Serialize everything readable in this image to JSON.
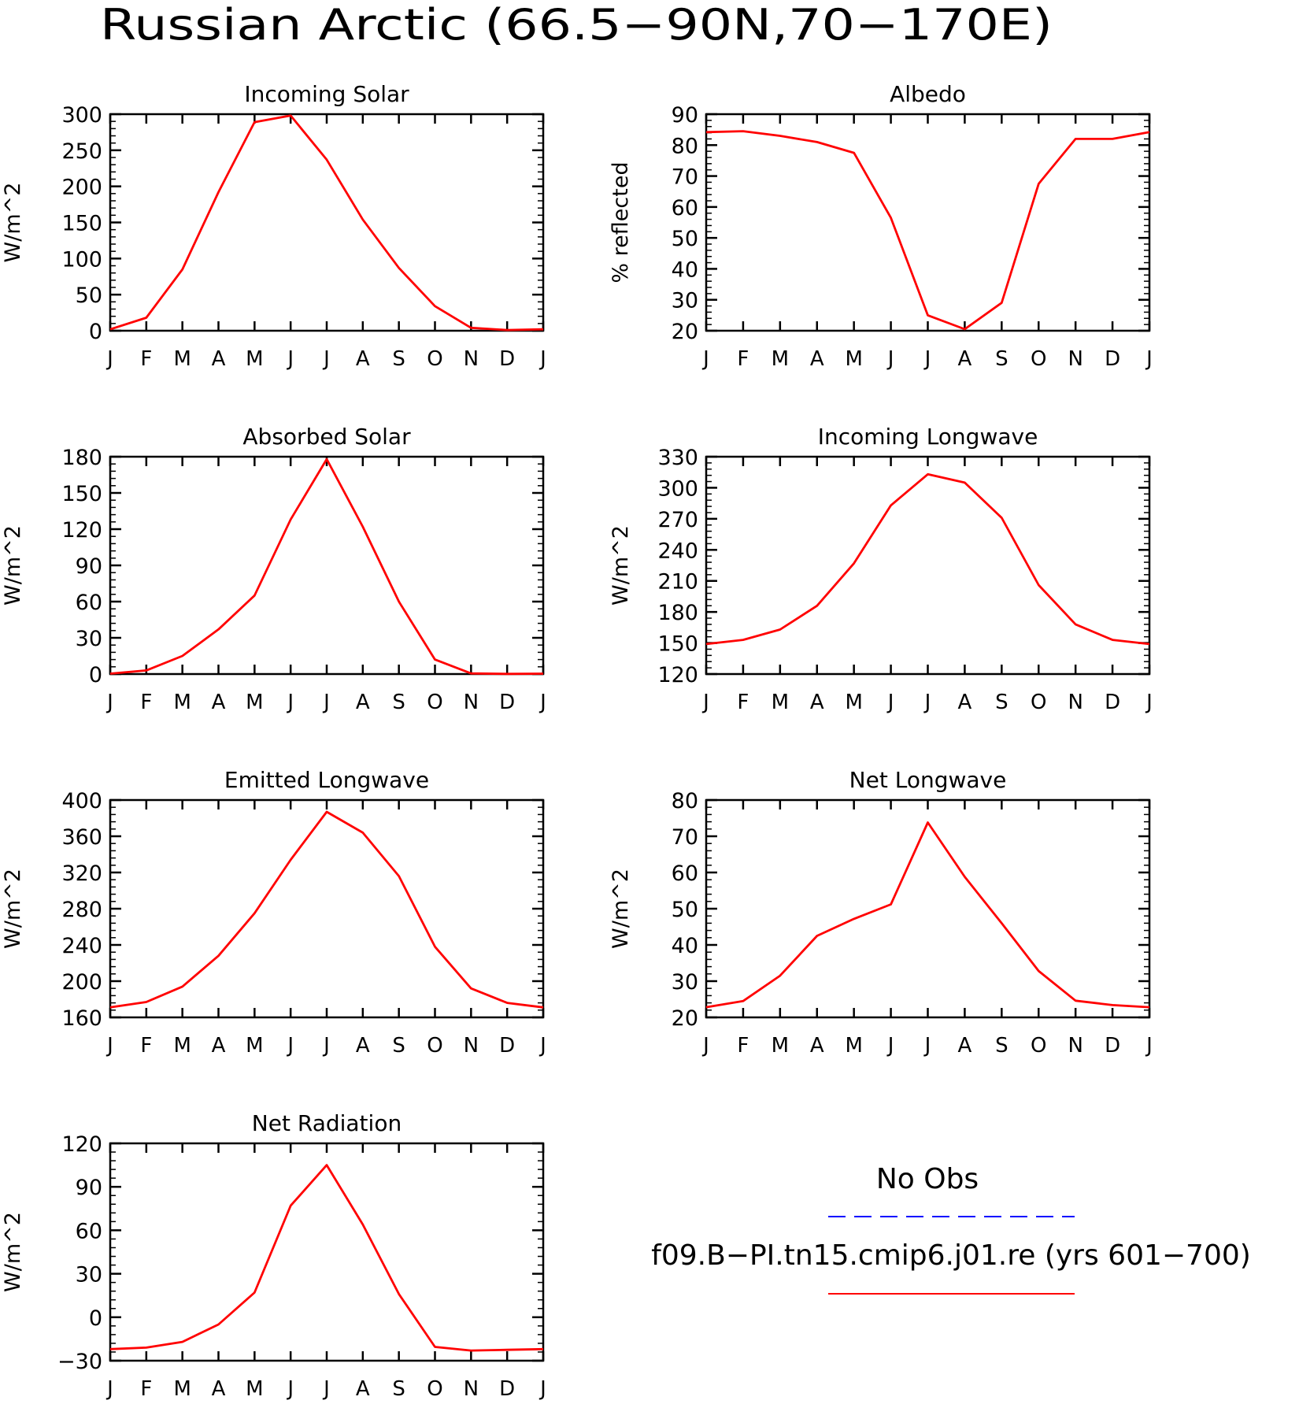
{
  "page_title": "Russian Arctic (66.5−90N,70−170E)",
  "colors": {
    "model_line": "#ff0000",
    "obs_line": "#0000ff",
    "axes": "#000000"
  },
  "legend": {
    "obs_label": "No Obs",
    "model_label": "f09.B−PI.tn15.cmip6.j01.re (yrs 601−700)"
  },
  "chart_data": [
    {
      "type": "line",
      "title": "Incoming Solar",
      "ylabel": "W/m^2",
      "ylim": [
        0,
        300
      ],
      "yticks": [
        0,
        50,
        100,
        150,
        200,
        250,
        300
      ],
      "ytick_labels": [
        "0",
        "50",
        "100",
        "150",
        "200",
        "250",
        "300"
      ],
      "categories": [
        "J",
        "F",
        "M",
        "A",
        "M",
        "J",
        "J",
        "A",
        "S",
        "O",
        "N",
        "D",
        "J"
      ],
      "series": [
        {
          "values": [
            2,
            18,
            85,
            192,
            289,
            298,
            237,
            154,
            87,
            34,
            4,
            1,
            2
          ]
        }
      ]
    },
    {
      "type": "line",
      "title": "Albedo",
      "ylabel": "% reflected",
      "ylim": [
        20,
        90
      ],
      "yticks": [
        20,
        30,
        40,
        50,
        60,
        70,
        80,
        90
      ],
      "ytick_labels": [
        "20",
        "30",
        "40",
        "50",
        "60",
        "70",
        "80",
        "90"
      ],
      "categories": [
        "J",
        "F",
        "M",
        "A",
        "M",
        "J",
        "J",
        "A",
        "S",
        "O",
        "N",
        "D",
        "J"
      ],
      "series": [
        {
          "values": [
            84.2,
            84.5,
            83,
            81,
            77.5,
            56.5,
            25,
            20.5,
            29,
            67.5,
            82,
            82,
            84.2
          ]
        }
      ]
    },
    {
      "type": "line",
      "title": "Absorbed Solar",
      "ylabel": "W/m^2",
      "ylim": [
        0,
        180
      ],
      "yticks": [
        0,
        30,
        60,
        90,
        120,
        150,
        180
      ],
      "ytick_labels": [
        "0",
        "30",
        "60",
        "90",
        "120",
        "150",
        "180"
      ],
      "categories": [
        "J",
        "F",
        "M",
        "A",
        "M",
        "J",
        "J",
        "A",
        "S",
        "O",
        "N",
        "D",
        "J"
      ],
      "series": [
        {
          "values": [
            0.3,
            3,
            15,
            37,
            65,
            128,
            178,
            122,
            60,
            12,
            0.5,
            0.1,
            0.3
          ]
        }
      ]
    },
    {
      "type": "line",
      "title": "Incoming Longwave",
      "ylabel": "W/m^2",
      "ylim": [
        120,
        330
      ],
      "yticks": [
        120,
        150,
        180,
        210,
        240,
        270,
        300,
        330
      ],
      "ytick_labels": [
        "120",
        "150",
        "180",
        "210",
        "240",
        "270",
        "300",
        "330"
      ],
      "categories": [
        "J",
        "F",
        "M",
        "A",
        "M",
        "J",
        "J",
        "A",
        "S",
        "O",
        "N",
        "D",
        "J"
      ],
      "series": [
        {
          "values": [
            149,
            153,
            163,
            186,
            227,
            283,
            313,
            305,
            271,
            206,
            168,
            153,
            149
          ]
        }
      ]
    },
    {
      "type": "line",
      "title": "Emitted Longwave",
      "ylabel": "W/m^2",
      "ylim": [
        160,
        400
      ],
      "yticks": [
        160,
        200,
        240,
        280,
        320,
        360,
        400
      ],
      "ytick_labels": [
        "160",
        "200",
        "240",
        "280",
        "320",
        "360",
        "400"
      ],
      "categories": [
        "J",
        "F",
        "M",
        "A",
        "M",
        "J",
        "J",
        "A",
        "S",
        "O",
        "N",
        "D",
        "J"
      ],
      "series": [
        {
          "values": [
            171,
            177,
            194,
            228,
            275,
            334,
            387,
            364,
            316,
            238,
            192,
            176,
            171
          ]
        }
      ]
    },
    {
      "type": "line",
      "title": "Net Longwave",
      "ylabel": "W/m^2",
      "ylim": [
        20,
        80
      ],
      "yticks": [
        20,
        30,
        40,
        50,
        60,
        70,
        80
      ],
      "ytick_labels": [
        "20",
        "30",
        "40",
        "50",
        "60",
        "70",
        "80"
      ],
      "categories": [
        "J",
        "F",
        "M",
        "A",
        "M",
        "J",
        "J",
        "A",
        "S",
        "O",
        "N",
        "D",
        "J"
      ],
      "series": [
        {
          "values": [
            22.8,
            24.5,
            31.5,
            42.5,
            47.2,
            51.2,
            73.8,
            58.8,
            46,
            32.8,
            24.6,
            23.4,
            22.8
          ]
        }
      ]
    },
    {
      "type": "line",
      "title": "Net Radiation",
      "ylabel": "W/m^2",
      "ylim": [
        -30,
        120
      ],
      "yticks": [
        -30,
        0,
        30,
        60,
        90,
        120
      ],
      "ytick_labels": [
        "−30",
        "0",
        "30",
        "60",
        "90",
        "120"
      ],
      "categories": [
        "J",
        "F",
        "M",
        "A",
        "M",
        "J",
        "J",
        "A",
        "S",
        "O",
        "N",
        "D",
        "J"
      ],
      "series": [
        {
          "values": [
            -22,
            -21,
            -17,
            -5,
            17,
            77,
            105,
            64,
            16,
            -20.5,
            -23,
            -22.5,
            -22
          ]
        }
      ]
    }
  ]
}
